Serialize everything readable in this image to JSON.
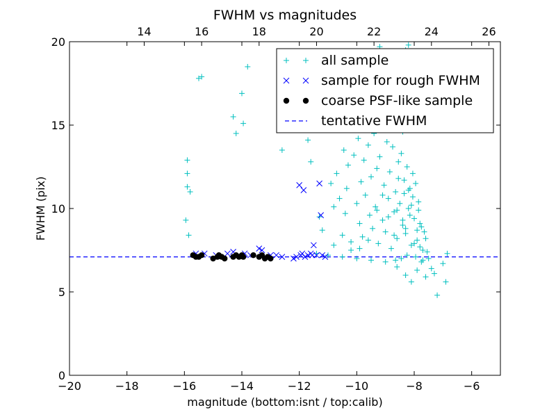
{
  "chart_data": {
    "type": "scatter",
    "title": "FWHM vs magnitudes",
    "xlabel": "magnitude (bottom:isnt / top:calib)",
    "ylabel": "FWHM (pix)",
    "xlim": [
      -20,
      -5
    ],
    "ylim": [
      0,
      20
    ],
    "x_ticks": [
      -20,
      -18,
      -16,
      -14,
      -12,
      -10,
      -8,
      -6
    ],
    "x_tick_labels": [
      "−20",
      "−18",
      "−16",
      "−14",
      "−12",
      "−10",
      "−8",
      "−6"
    ],
    "y_ticks": [
      0,
      5,
      10,
      15,
      20
    ],
    "y_tick_labels": [
      "0",
      "5",
      "10",
      "15",
      "20"
    ],
    "top_axis": {
      "ticks": [
        14,
        16,
        18,
        20,
        22,
        24,
        26
      ],
      "tick_labels": [
        "14",
        "16",
        "18",
        "20",
        "22",
        "24",
        "26"
      ],
      "offset": 31.4
    },
    "legend": {
      "position": "upper right"
    },
    "grid": false,
    "colors": {
      "all_sample": "#00bfbf",
      "rough_sample": "#0000ff",
      "psf_sample": "#000000",
      "tentative": "#0000ff"
    },
    "series": [
      {
        "name": "all sample",
        "marker": "+",
        "points": [
          [
            -15.9,
            12.9
          ],
          [
            -15.9,
            12.1
          ],
          [
            -15.9,
            11.3
          ],
          [
            -15.8,
            11.0
          ],
          [
            -15.95,
            9.3
          ],
          [
            -15.85,
            8.4
          ],
          [
            -15.5,
            17.8
          ],
          [
            -15.4,
            17.9
          ],
          [
            -14.3,
            15.5
          ],
          [
            -14.2,
            14.5
          ],
          [
            -14.0,
            16.9
          ],
          [
            -13.95,
            15.1
          ],
          [
            -13.8,
            18.5
          ],
          [
            -12.6,
            13.5
          ],
          [
            -11.7,
            14.1
          ],
          [
            -11.6,
            12.8
          ],
          [
            -11.3,
            9.5
          ],
          [
            -11.2,
            8.7
          ],
          [
            -10.9,
            11.5
          ],
          [
            -10.8,
            10.1
          ],
          [
            -10.7,
            12.1
          ],
          [
            -10.6,
            10.6
          ],
          [
            -10.5,
            8.4
          ],
          [
            -10.45,
            13.5
          ],
          [
            -10.4,
            9.7
          ],
          [
            -10.35,
            11.2
          ],
          [
            -10.3,
            12.6
          ],
          [
            -10.2,
            8.0
          ],
          [
            -10.1,
            13.2
          ],
          [
            -10.0,
            10.3
          ],
          [
            -9.95,
            14.2
          ],
          [
            -9.9,
            9.1
          ],
          [
            -9.85,
            11.6
          ],
          [
            -9.8,
            8.3
          ],
          [
            -9.75,
            12.9
          ],
          [
            -9.7,
            10.8
          ],
          [
            -9.6,
            13.8
          ],
          [
            -9.55,
            9.6
          ],
          [
            -9.5,
            11.9
          ],
          [
            -9.45,
            8.8
          ],
          [
            -9.4,
            14.5
          ],
          [
            -9.35,
            10.1
          ],
          [
            -9.3,
            12.4
          ],
          [
            -9.25,
            7.9
          ],
          [
            -9.2,
            13.1
          ],
          [
            -9.1,
            9.3
          ],
          [
            -9.05,
            11.4
          ],
          [
            -9.0,
            8.6
          ],
          [
            -8.95,
            14.0
          ],
          [
            -8.9,
            10.6
          ],
          [
            -8.85,
            12.2
          ],
          [
            -8.8,
            7.6
          ],
          [
            -8.75,
            13.7
          ],
          [
            -8.7,
            9.8
          ],
          [
            -8.65,
            11.0
          ],
          [
            -8.6,
            8.2
          ],
          [
            -8.55,
            12.8
          ],
          [
            -8.5,
            10.3
          ],
          [
            -8.45,
            13.3
          ],
          [
            -8.4,
            9.0
          ],
          [
            -8.35,
            11.7
          ],
          [
            -8.3,
            8.5
          ],
          [
            -8.25,
            12.5
          ],
          [
            -8.2,
            10.0
          ],
          [
            -8.15,
            11.2
          ],
          [
            -8.1,
            7.8
          ],
          [
            -8.05,
            10.7
          ],
          [
            -8.0,
            9.4
          ],
          [
            -7.95,
            11.5
          ],
          [
            -7.9,
            8.1
          ],
          [
            -7.85,
            10.4
          ],
          [
            -7.8,
            9.1
          ],
          [
            -7.75,
            8.9
          ],
          [
            -7.7,
            7.5
          ],
          [
            -7.6,
            8.2
          ],
          [
            -7.5,
            7.0
          ],
          [
            -7.4,
            6.4
          ],
          [
            -7.3,
            6.1
          ],
          [
            -7.2,
            4.8
          ],
          [
            -7.0,
            6.7
          ],
          [
            -6.9,
            5.6
          ],
          [
            -6.85,
            7.3
          ],
          [
            -8.1,
            5.6
          ],
          [
            -8.6,
            6.5
          ],
          [
            -9.0,
            6.8
          ],
          [
            -9.5,
            6.9
          ],
          [
            -10.0,
            7.0
          ],
          [
            -10.5,
            7.1
          ],
          [
            -11.0,
            7.2
          ],
          [
            -8.3,
            6.0
          ],
          [
            -7.9,
            6.3
          ],
          [
            -7.6,
            5.9
          ],
          [
            -8.8,
            14.9
          ],
          [
            -8.5,
            16.2
          ],
          [
            -8.3,
            19.5
          ],
          [
            -8.2,
            19.8
          ],
          [
            -8.0,
            17.5
          ],
          [
            -9.2,
            19.7
          ],
          [
            -8.7,
            18.3
          ],
          [
            -9.4,
            16.8
          ],
          [
            -9.8,
            15.4
          ],
          [
            -8.4,
            14.6
          ],
          [
            -8.25,
            7.2
          ],
          [
            -8.45,
            7.0
          ],
          [
            -8.65,
            6.9
          ],
          [
            -7.95,
            7.1
          ],
          [
            -7.75,
            6.8
          ],
          [
            -7.55,
            7.4
          ],
          [
            -8.15,
            9.6
          ],
          [
            -8.35,
            10.9
          ],
          [
            -8.55,
            11.8
          ],
          [
            -7.85,
            9.9
          ],
          [
            -7.65,
            8.6
          ],
          [
            -8.05,
            12.1
          ],
          [
            -8.3,
            8.8
          ],
          [
            -8.1,
            10.2
          ],
          [
            -8.4,
            9.3
          ],
          [
            -8.2,
            11.1
          ],
          [
            -7.9,
            8.7
          ],
          [
            -8.0,
            7.9
          ],
          [
            -8.6,
            9.9
          ],
          [
            -8.7,
            8.4
          ],
          [
            -8.9,
            9.5
          ],
          [
            -9.1,
            10.8
          ],
          [
            -9.3,
            9.9
          ],
          [
            -9.6,
            8.1
          ],
          [
            -9.9,
            7.6
          ],
          [
            -10.2,
            7.5
          ],
          [
            -10.8,
            7.8
          ],
          [
            -11.4,
            7.3
          ],
          [
            -7.8,
            7.7
          ],
          [
            -7.7,
            6.9
          ]
        ]
      },
      {
        "name": "sample for rough FWHM",
        "marker": "x",
        "points": [
          [
            -15.6,
            7.3
          ],
          [
            -15.3,
            7.3
          ],
          [
            -14.9,
            7.2
          ],
          [
            -14.5,
            7.3
          ],
          [
            -14.3,
            7.4
          ],
          [
            -13.9,
            7.3
          ],
          [
            -13.7,
            7.2
          ],
          [
            -13.4,
            7.6
          ],
          [
            -13.3,
            7.5
          ],
          [
            -13.0,
            7.2
          ],
          [
            -12.8,
            7.2
          ],
          [
            -12.6,
            7.1
          ],
          [
            -12.1,
            7.1
          ],
          [
            -12.0,
            11.4
          ],
          [
            -11.9,
            7.3
          ],
          [
            -11.85,
            11.1
          ],
          [
            -11.7,
            7.2
          ],
          [
            -11.6,
            7.3
          ],
          [
            -11.5,
            7.8
          ],
          [
            -11.4,
            7.2
          ],
          [
            -11.3,
            11.5
          ],
          [
            -11.25,
            9.6
          ],
          [
            -11.2,
            7.2
          ],
          [
            -11.1,
            7.1
          ],
          [
            -12.2,
            7.0
          ],
          [
            -11.95,
            7.2
          ],
          [
            -11.8,
            7.1
          ],
          [
            -11.55,
            7.2
          ]
        ]
      },
      {
        "name": "coarse PSF-like sample",
        "marker": "o",
        "points": [
          [
            -15.7,
            7.2
          ],
          [
            -15.6,
            7.1
          ],
          [
            -15.5,
            7.1
          ],
          [
            -15.4,
            7.2
          ],
          [
            -15.0,
            7.0
          ],
          [
            -14.85,
            7.1
          ],
          [
            -14.8,
            7.2
          ],
          [
            -14.7,
            7.1
          ],
          [
            -14.6,
            7.0
          ],
          [
            -14.3,
            7.1
          ],
          [
            -14.2,
            7.2
          ],
          [
            -14.1,
            7.1
          ],
          [
            -14.0,
            7.2
          ],
          [
            -13.95,
            7.1
          ],
          [
            -13.6,
            7.2
          ],
          [
            -13.4,
            7.1
          ],
          [
            -13.3,
            7.2
          ],
          [
            -13.2,
            7.0
          ],
          [
            -13.1,
            7.1
          ],
          [
            -13.0,
            7.0
          ]
        ]
      }
    ],
    "reference_lines": [
      {
        "name": "tentative FWHM",
        "style": "dashed",
        "y": 7.1
      }
    ]
  }
}
